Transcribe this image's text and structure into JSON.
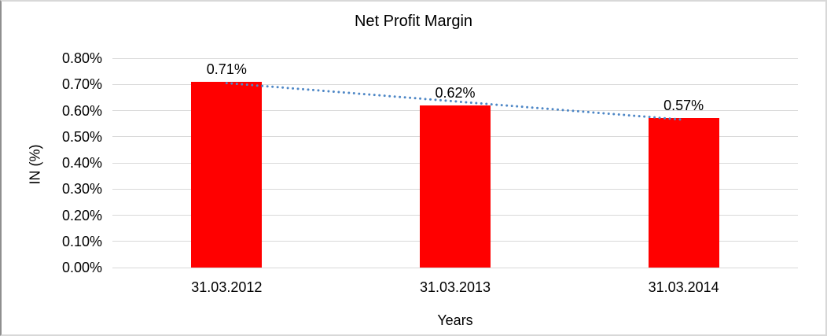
{
  "chart_data": {
    "type": "bar",
    "title": "Net Profit Margin",
    "categories": [
      "31.03.2012",
      "31.03.2013",
      "31.03.2014"
    ],
    "values": [
      0.71,
      0.62,
      0.57
    ],
    "data_labels": [
      "0.71%",
      "0.62%",
      "0.57%"
    ],
    "xlabel": "Years",
    "ylabel": "IN (%)",
    "ylim": [
      0,
      0.8
    ],
    "ytick_step": 0.1,
    "ytick_labels": [
      "0.00%",
      "0.10%",
      "0.20%",
      "0.30%",
      "0.40%",
      "0.50%",
      "0.60%",
      "0.70%",
      "0.80%"
    ],
    "grid": true,
    "legend": "none",
    "colors": {
      "bar": "#FF0000",
      "gridline": "#D9D9D9",
      "trendline": "#4E87C6",
      "text": "#000000"
    },
    "trendline": {
      "type": "linear",
      "style": "dotted",
      "from_value": 0.705,
      "to_value": 0.565
    }
  }
}
